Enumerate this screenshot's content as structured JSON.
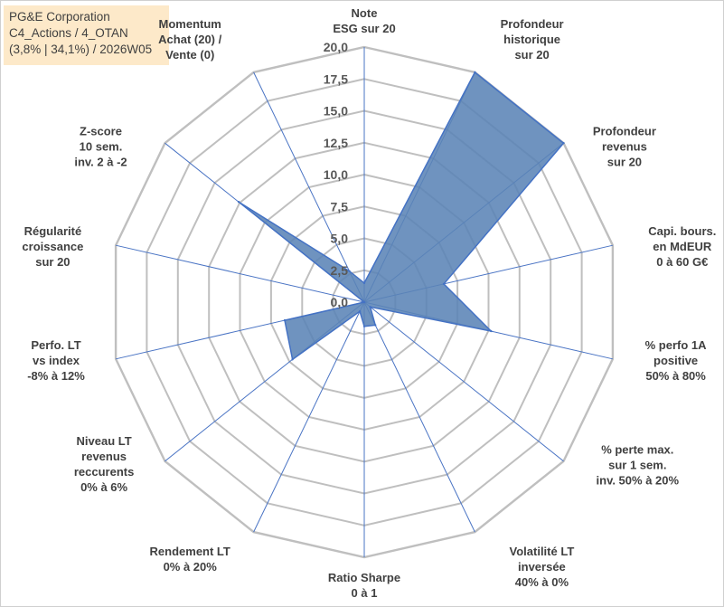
{
  "header": {
    "line1": "PG&E Corporation",
    "line2": "C4_Actions / 4_OTAN",
    "line3": "(3,8% | 34,1%) / 2026W05"
  },
  "colors": {
    "fill": "#5b84b6",
    "stroke": "#4472c4",
    "grid": "#bfbfbf",
    "spoke": "#4a74c4",
    "box": "#fde9c9"
  },
  "chart_data": {
    "type": "radar",
    "ylim": [
      0,
      20
    ],
    "ticks": [
      "0,0",
      "2,5",
      "5,0",
      "7,5",
      "10,0",
      "12,5",
      "15,0",
      "17,5",
      "20,0"
    ],
    "grid": true,
    "categories": [
      [
        "Note",
        "ESG sur 20"
      ],
      [
        "Profondeur",
        "historique",
        "sur 20"
      ],
      [
        "Profondeur",
        "revenus",
        "sur 20"
      ],
      [
        "Capi. bours.",
        "en MdEUR",
        "0 à 60 G€"
      ],
      [
        "% perfo 1A",
        "positive",
        "50% à 80%"
      ],
      [
        "% perte max.",
        "sur 1 sem.",
        "inv. 50% à 20%"
      ],
      [
        "Volatilité LT",
        "inversée",
        "40% à 0%"
      ],
      [
        "Ratio Sharpe",
        "0 à 1"
      ],
      [
        "Rendement LT",
        "0% à 20%"
      ],
      [
        "Niveau LT",
        "revenus",
        "reccurents",
        "0% à 6%"
      ],
      [
        "Perfo. LT",
        "vs index",
        "-8% à 12%"
      ],
      [
        "Régularité",
        "croissance",
        "sur 20"
      ],
      [
        "Z-score",
        "10 sem.",
        "inv. 2 à -2"
      ],
      [
        "Momentum",
        "Achat (20) /",
        "Vente (0)"
      ]
    ],
    "values": [
      1.5,
      20,
      20,
      6.4,
      10.2,
      0.6,
      2.0,
      1.9,
      0.8,
      7.2,
      6.4,
      0.0,
      12.6,
      2.7
    ]
  }
}
